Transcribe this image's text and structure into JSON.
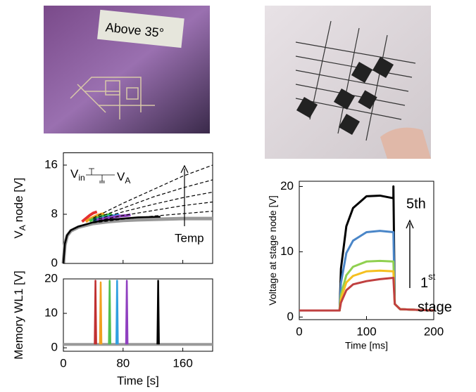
{
  "photo_text": "Above 35°",
  "chart_data": [
    {
      "type": "line",
      "y_label": {
        "main": "V",
        "sub": "A",
        "rest": "node [V]"
      },
      "xlim": [
        0,
        200
      ],
      "xticks": [
        0,
        80,
        160
      ],
      "ylim": [
        0,
        18
      ],
      "yticks": [
        0,
        8,
        16
      ],
      "inset": {
        "vin": {
          "main": "V",
          "sub": "in"
        },
        "va": {
          "main": "V",
          "sub": "A"
        }
      },
      "annotations": [
        "Temp"
      ],
      "series": [
        {
          "color": "#999999",
          "width": 5,
          "x": [
            0,
            2,
            5,
            10,
            20,
            30,
            40,
            60,
            80,
            100,
            130,
            160,
            200
          ],
          "values": [
            0,
            3,
            4.5,
            5.3,
            5.9,
            6.2,
            6.5,
            6.8,
            7,
            7.1,
            7.2,
            7.3,
            7.3
          ]
        },
        {
          "color": "#e53030",
          "width": 4,
          "x": [
            25,
            30,
            35,
            40,
            45
          ],
          "values": [
            6.8,
            7.3,
            7.8,
            8.2,
            8.4
          ]
        },
        {
          "color": "#f0a020",
          "width": 4,
          "x": [
            30,
            35,
            40,
            45,
            50,
            55
          ],
          "values": [
            6.8,
            7.2,
            7.5,
            7.8,
            8,
            8.1
          ]
        },
        {
          "color": "#40c040",
          "width": 4,
          "x": [
            35,
            40,
            50,
            60,
            65
          ],
          "values": [
            6.9,
            7.2,
            7.6,
            7.9,
            8
          ]
        },
        {
          "color": "#30a0e0",
          "width": 4,
          "x": [
            40,
            50,
            60,
            70,
            75
          ],
          "values": [
            7,
            7.3,
            7.6,
            7.8,
            7.9
          ]
        },
        {
          "color": "#9040c0",
          "width": 4,
          "x": [
            45,
            55,
            65,
            75,
            85,
            90
          ],
          "values": [
            7.1,
            7.3,
            7.5,
            7.7,
            7.8,
            7.9
          ]
        },
        {
          "color": "#000000",
          "width": 2.5,
          "x": [
            0,
            2,
            5,
            10,
            20,
            40,
            60,
            80,
            100,
            130
          ],
          "values": [
            0,
            3.2,
            4.6,
            5.4,
            6,
            6.7,
            7.1,
            7.3,
            7.5,
            7.6
          ]
        },
        {
          "color": "#000000",
          "dash": true,
          "width": 1.2,
          "x": [
            40,
            80,
            120,
            160,
            200
          ],
          "values": [
            6.6,
            7.2,
            7.7,
            8.1,
            8.5
          ]
        },
        {
          "color": "#000000",
          "dash": true,
          "width": 1.2,
          "x": [
            40,
            80,
            120,
            160,
            200
          ],
          "values": [
            6.8,
            7.8,
            8.6,
            9.4,
            10
          ]
        },
        {
          "color": "#000000",
          "dash": true,
          "width": 1.2,
          "x": [
            40,
            80,
            120,
            160,
            200
          ],
          "values": [
            7,
            8.4,
            9.6,
            10.7,
            11.6
          ]
        },
        {
          "color": "#000000",
          "dash": true,
          "width": 1.2,
          "x": [
            40,
            80,
            120,
            160,
            200
          ],
          "values": [
            7.2,
            9,
            10.8,
            12.3,
            13.6
          ]
        },
        {
          "color": "#000000",
          "dash": true,
          "width": 1.2,
          "x": [
            40,
            80,
            120,
            160,
            200
          ],
          "values": [
            7.4,
            9.8,
            12,
            14.2,
            16
          ]
        }
      ]
    },
    {
      "type": "line",
      "y_label": {
        "main": "Memory WL1 [V]"
      },
      "x_label": "Time [s]",
      "xlim": [
        0,
        200
      ],
      "xticks": [
        0,
        80,
        160
      ],
      "ylim": [
        -1,
        20
      ],
      "yticks": [
        0,
        10,
        20
      ],
      "show_xtick_labels": true,
      "series": [
        {
          "color": "#999999",
          "width": 4,
          "x": [
            0,
            200
          ],
          "values": [
            1,
            1
          ]
        },
        {
          "color": "#c03030",
          "width": 2.5,
          "x": [
            42,
            43,
            44
          ],
          "values": [
            1,
            19.5,
            1
          ]
        },
        {
          "color": "#f0a020",
          "width": 2.5,
          "x": [
            49,
            50,
            51
          ],
          "values": [
            1,
            19,
            1
          ]
        },
        {
          "color": "#50c050",
          "width": 2.5,
          "x": [
            61,
            62,
            63
          ],
          "values": [
            1,
            19.5,
            1
          ]
        },
        {
          "color": "#30a0e0",
          "width": 2.5,
          "x": [
            71,
            72,
            73
          ],
          "values": [
            1,
            19.5,
            1
          ]
        },
        {
          "color": "#9040c0",
          "width": 2.5,
          "x": [
            84,
            85,
            86
          ],
          "values": [
            1,
            19.5,
            1
          ]
        },
        {
          "color": "#000000",
          "width": 2.5,
          "x": [
            126,
            127,
            128
          ],
          "values": [
            1,
            19.5,
            1
          ]
        }
      ]
    },
    {
      "type": "line",
      "y_label": {
        "main": "Voltage at stage node [V]"
      },
      "x_label": "Time [ms]",
      "xlim": [
        0,
        200
      ],
      "xticks": [
        0,
        100,
        200
      ],
      "ylim": [
        -0.4,
        20.8
      ],
      "yticks": [
        0,
        10,
        20
      ],
      "show_xtick_labels": true,
      "annotations": [
        "5th",
        "1",
        "st",
        "stage"
      ],
      "series": [
        {
          "color": "#000000",
          "width": 3,
          "x": [
            0,
            60,
            62,
            70,
            80,
            100,
            120,
            140,
            140,
            142,
            150,
            200
          ],
          "values": [
            1,
            1,
            7.4,
            13.9,
            16.7,
            18.5,
            18.6,
            18.2,
            20,
            2,
            1.2,
            1
          ]
        },
        {
          "color": "#4a86c8",
          "width": 3,
          "x": [
            0,
            60,
            62,
            70,
            80,
            100,
            120,
            140,
            142,
            150,
            200
          ],
          "values": [
            1,
            1,
            5.2,
            9.8,
            11.7,
            13,
            13.2,
            13,
            2,
            1.2,
            1
          ]
        },
        {
          "color": "#90d050",
          "width": 3,
          "x": [
            0,
            60,
            62,
            70,
            80,
            100,
            120,
            140,
            142,
            150,
            200
          ],
          "values": [
            1,
            1,
            3.4,
            6.4,
            7.7,
            8.5,
            8.6,
            8.5,
            2,
            1.2,
            1
          ]
        },
        {
          "color": "#f5c020",
          "width": 3,
          "x": [
            0,
            60,
            62,
            70,
            80,
            100,
            120,
            140,
            142,
            150,
            200
          ],
          "values": [
            1,
            1,
            2.8,
            5.3,
            6.3,
            7,
            7.1,
            7,
            2,
            1.2,
            1
          ]
        },
        {
          "color": "#c04040",
          "width": 3,
          "x": [
            0,
            60,
            62,
            70,
            80,
            100,
            120,
            140,
            142,
            150,
            200
          ],
          "values": [
            1,
            1,
            2.2,
            4.1,
            5,
            5.5,
            5.8,
            6,
            2,
            1.2,
            1
          ]
        }
      ]
    }
  ]
}
